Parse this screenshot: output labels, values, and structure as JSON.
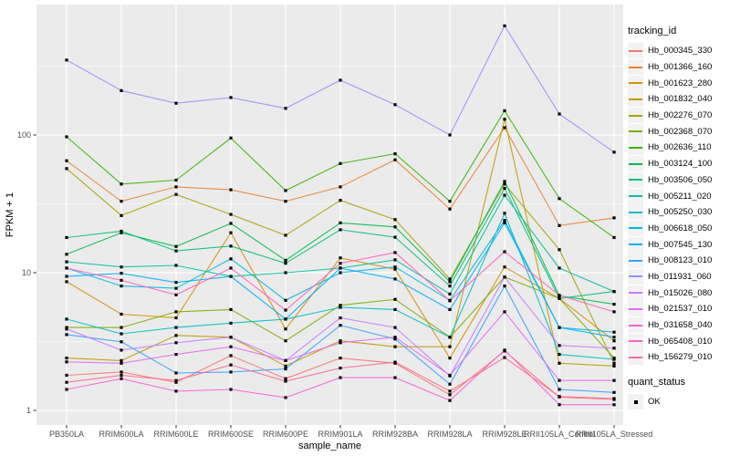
{
  "figure": {
    "x_axis_title": "sample_name",
    "y_axis_title": "FPKM + 1",
    "legend_color_title": "tracking_id",
    "legend_shape_title": "quant_status",
    "legend_shape_label": "OK",
    "panel_bg": "#EBEBEB",
    "grid_color": "#FFFFFF",
    "tick_text_color": "#4D4D4D",
    "axis_title_color": "#000000",
    "point_color": "#000000",
    "legend_key_bg": "#F2F2F2"
  },
  "chart_data": {
    "type": "line",
    "title": "",
    "xlabel": "sample_name",
    "ylabel": "FPKM + 1",
    "y_scale": "log10",
    "y_tick_values": [
      1,
      10,
      100
    ],
    "y_minor_values": [
      3.162,
      31.62,
      316.2
    ],
    "ylim": [
      1,
      890
    ],
    "grid": true,
    "legend_position": "right",
    "point_shape": "filled-square",
    "quant_status_all_points": "OK",
    "categories": [
      "PB350LA",
      "RRIM600LA",
      "RRIM600LE",
      "RRIM600SE",
      "RRIM600PE",
      "RRIM901LA",
      "RRIM928BA",
      "RRIM928LA",
      "RRIM928LE",
      "RRII105LA_Control",
      "RRII105LA_Stressed"
    ],
    "series": [
      {
        "name": "Hb_000345_330",
        "color": "#F8766D",
        "values": [
          1.8,
          1.9,
          1.6,
          2.5,
          1.7,
          2.4,
          2.2,
          1.3,
          2.7,
          1.25,
          1.2
        ]
      },
      {
        "name": "Hb_001366_160",
        "color": "#EA8331",
        "values": [
          65,
          33,
          42,
          40,
          33,
          42,
          66,
          29,
          113,
          22,
          25
        ]
      },
      {
        "name": "Hb_001623_280",
        "color": "#D89000",
        "values": [
          8.6,
          5.0,
          4.7,
          19.5,
          3.9,
          12.8,
          10.6,
          2.4,
          11.0,
          6.5,
          3.2
        ]
      },
      {
        "name": "Hb_001832_040",
        "color": "#C09B00",
        "values": [
          2.4,
          2.3,
          3.5,
          3.4,
          2.1,
          3.2,
          2.9,
          2.9,
          130,
          2.2,
          2.1
        ]
      },
      {
        "name": "Hb_002276_070",
        "color": "#A3A500",
        "values": [
          57,
          26,
          37,
          26.5,
          18.7,
          33.5,
          24.3,
          9.0,
          44,
          14.7,
          2.2
        ]
      },
      {
        "name": "Hb_002368_070",
        "color": "#7CAE00",
        "values": [
          4.0,
          4.0,
          5.2,
          5.4,
          3.2,
          5.8,
          6.4,
          3.4,
          9.3,
          6.5,
          2.4
        ]
      },
      {
        "name": "Hb_002636_110",
        "color": "#39B600",
        "values": [
          97,
          44,
          47,
          95,
          39.5,
          62,
          73,
          33,
          150,
          34.5,
          18
        ]
      },
      {
        "name": "Hb_003124_100",
        "color": "#00BB4E",
        "values": [
          13.6,
          19.5,
          15.5,
          22.8,
          12.3,
          23,
          21.5,
          8.6,
          46,
          6.8,
          5.9
        ]
      },
      {
        "name": "Hb_003506_050",
        "color": "#00BF7D",
        "values": [
          18,
          20,
          14.4,
          15.6,
          11.7,
          20.5,
          18.1,
          8.0,
          41,
          6.5,
          7.3
        ]
      },
      {
        "name": "Hb_005211_020",
        "color": "#00C1A3",
        "values": [
          12,
          11,
          11.3,
          9.4,
          10,
          10.8,
          12.4,
          7.0,
          36.5,
          10.8,
          7.3
        ]
      },
      {
        "name": "Hb_005250_030",
        "color": "#00BFC4",
        "values": [
          4.6,
          3.6,
          4.0,
          4.3,
          4.6,
          5.6,
          5.4,
          3.4,
          27,
          2.55,
          2.35
        ]
      },
      {
        "name": "Hb_006618_050",
        "color": "#00BAE0",
        "values": [
          10.8,
          8.0,
          7.7,
          12.6,
          6.3,
          10.0,
          11.0,
          6.3,
          24,
          4.0,
          3.7
        ]
      },
      {
        "name": "Hb_007545_130",
        "color": "#00B0F6",
        "values": [
          9.4,
          9.9,
          8.5,
          9.4,
          4.6,
          10.8,
          9.0,
          5.4,
          23,
          4.0,
          3.4
        ]
      },
      {
        "name": "Hb_008123_010",
        "color": "#35A2FF",
        "values": [
          3.55,
          3.15,
          1.87,
          1.9,
          2.0,
          4.15,
          3.3,
          1.55,
          8.0,
          1.42,
          1.35
        ]
      },
      {
        "name": "Hb_011931_060",
        "color": "#9590FF",
        "values": [
          350,
          210,
          170,
          187,
          156,
          250,
          166,
          100,
          620,
          142,
          75
        ]
      },
      {
        "name": "Hb_015026_080",
        "color": "#C77CFF",
        "values": [
          3.9,
          2.74,
          3.1,
          3.4,
          2.3,
          4.7,
          4.0,
          1.78,
          9.3,
          2.96,
          2.83
        ]
      },
      {
        "name": "Hb_021537_010",
        "color": "#E76BF3",
        "values": [
          2.25,
          2.2,
          2.55,
          2.9,
          2.3,
          3.1,
          3.4,
          1.8,
          5.2,
          1.65,
          1.65
        ]
      },
      {
        "name": "Hb_031658_040",
        "color": "#FA62DB",
        "values": [
          1.42,
          1.7,
          1.38,
          1.42,
          1.24,
          1.73,
          1.73,
          1.18,
          2.74,
          1.1,
          1.1
        ]
      },
      {
        "name": "Hb_065408_010",
        "color": "#FF62BC",
        "values": [
          10.8,
          8.8,
          6.9,
          10.8,
          5.35,
          11.7,
          14,
          6.25,
          14.2,
          6.85,
          5.2
        ]
      },
      {
        "name": "Hb_156279_010",
        "color": "#FF6A98",
        "values": [
          1.6,
          1.8,
          1.65,
          2.14,
          1.63,
          2.03,
          2.24,
          1.38,
          2.42,
          1.26,
          1.22
        ]
      }
    ]
  }
}
